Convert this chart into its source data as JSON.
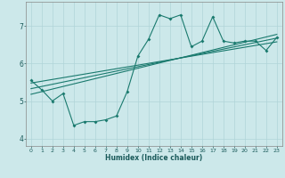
{
  "xlabel": "Humidex (Indice chaleur)",
  "background_color": "#cce8ea",
  "line_color": "#1a7a6e",
  "grid_color": "#b0d4d8",
  "x_data": [
    0,
    1,
    2,
    3,
    4,
    5,
    6,
    7,
    8,
    9,
    10,
    11,
    12,
    13,
    14,
    15,
    16,
    17,
    18,
    19,
    20,
    21,
    22,
    23
  ],
  "y_data": [
    5.55,
    5.3,
    5.0,
    5.2,
    4.35,
    4.45,
    4.45,
    4.5,
    4.6,
    5.25,
    6.2,
    6.65,
    7.3,
    7.2,
    7.3,
    6.45,
    6.6,
    7.25,
    6.6,
    6.55,
    6.6,
    6.6,
    6.35,
    6.7
  ],
  "ylim": [
    3.8,
    7.65
  ],
  "xlim": [
    -0.5,
    23.5
  ],
  "yticks": [
    4,
    5,
    6,
    7
  ],
  "xticks": [
    0,
    1,
    2,
    3,
    4,
    5,
    6,
    7,
    8,
    9,
    10,
    11,
    12,
    13,
    14,
    15,
    16,
    17,
    18,
    19,
    20,
    21,
    22,
    23
  ],
  "regression_lines": [
    {
      "start_x": 0,
      "start_y": 5.48,
      "end_x": 23,
      "end_y": 6.58
    },
    {
      "start_x": 0,
      "start_y": 5.33,
      "end_x": 23,
      "end_y": 6.68
    },
    {
      "start_x": 0,
      "start_y": 5.18,
      "end_x": 23,
      "end_y": 6.78
    }
  ]
}
